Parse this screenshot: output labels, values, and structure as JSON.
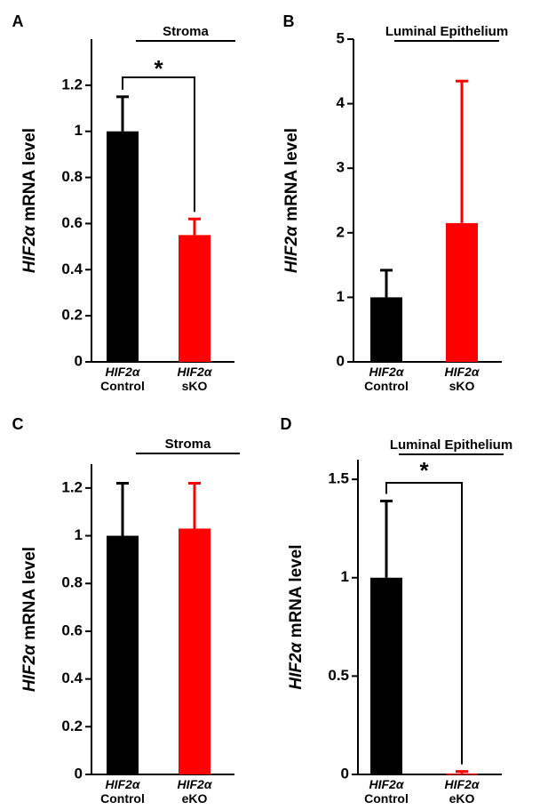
{
  "chart_data": [
    {
      "panel": "A",
      "type": "bar",
      "title": "Stroma",
      "ylabel": {
        "gene": "HIF2α",
        "rest": " mRNA level"
      },
      "categories": [
        {
          "gene": "HIF2α",
          "group": "Control"
        },
        {
          "gene": "HIF2α",
          "group": "sKO"
        }
      ],
      "values": [
        1.0,
        0.55
      ],
      "errors": [
        0.15,
        0.07
      ],
      "colors": [
        "#000000",
        "#ff0000"
      ],
      "ylim": [
        0,
        1.4
      ],
      "yticks": [
        "0",
        "0.2",
        "0.4",
        "0.6",
        "0.8",
        "1",
        "1.2"
      ],
      "significance": "*"
    },
    {
      "panel": "B",
      "type": "bar",
      "title": "Luminal Epithelium",
      "ylabel": {
        "gene": "HIF2α",
        "rest": " mRNA level"
      },
      "categories": [
        {
          "gene": "HIF2α",
          "group": "Control"
        },
        {
          "gene": "HIF2α",
          "group": "sKO"
        }
      ],
      "values": [
        1.0,
        2.15
      ],
      "errors": [
        0.42,
        2.2
      ],
      "colors": [
        "#000000",
        "#ff0000"
      ],
      "ylim": [
        0,
        5
      ],
      "yticks": [
        "0",
        "1",
        "2",
        "3",
        "4",
        "5"
      ],
      "significance": ""
    },
    {
      "panel": "C",
      "type": "bar",
      "title": "Stroma",
      "ylabel": {
        "gene": "HIF2α",
        "rest": " mRNA level"
      },
      "categories": [
        {
          "gene": "HIF2α",
          "group": "Control"
        },
        {
          "gene": "HIF2α",
          "group": "eKO"
        }
      ],
      "values": [
        1.0,
        1.03
      ],
      "errors": [
        0.22,
        0.19
      ],
      "colors": [
        "#000000",
        "#ff0000"
      ],
      "ylim": [
        0,
        1.3
      ],
      "yticks": [
        "0",
        "0.2",
        "0.4",
        "0.6",
        "0.8",
        "1",
        "1.2"
      ],
      "significance": ""
    },
    {
      "panel": "D",
      "type": "bar",
      "title": "Luminal Epithelium",
      "ylabel": {
        "gene": "HIF2α",
        "rest": " mRNA level"
      },
      "categories": [
        {
          "gene": "HIF2α",
          "group": "Control"
        },
        {
          "gene": "HIF2α",
          "group": "eKO"
        }
      ],
      "values": [
        1.0,
        0.005
      ],
      "errors": [
        0.39,
        0.01
      ],
      "colors": [
        "#000000",
        "#ff0000"
      ],
      "ylim": [
        0,
        1.6
      ],
      "yticks": [
        "0",
        "0.5",
        "1",
        "1.5"
      ],
      "significance": "*"
    }
  ]
}
